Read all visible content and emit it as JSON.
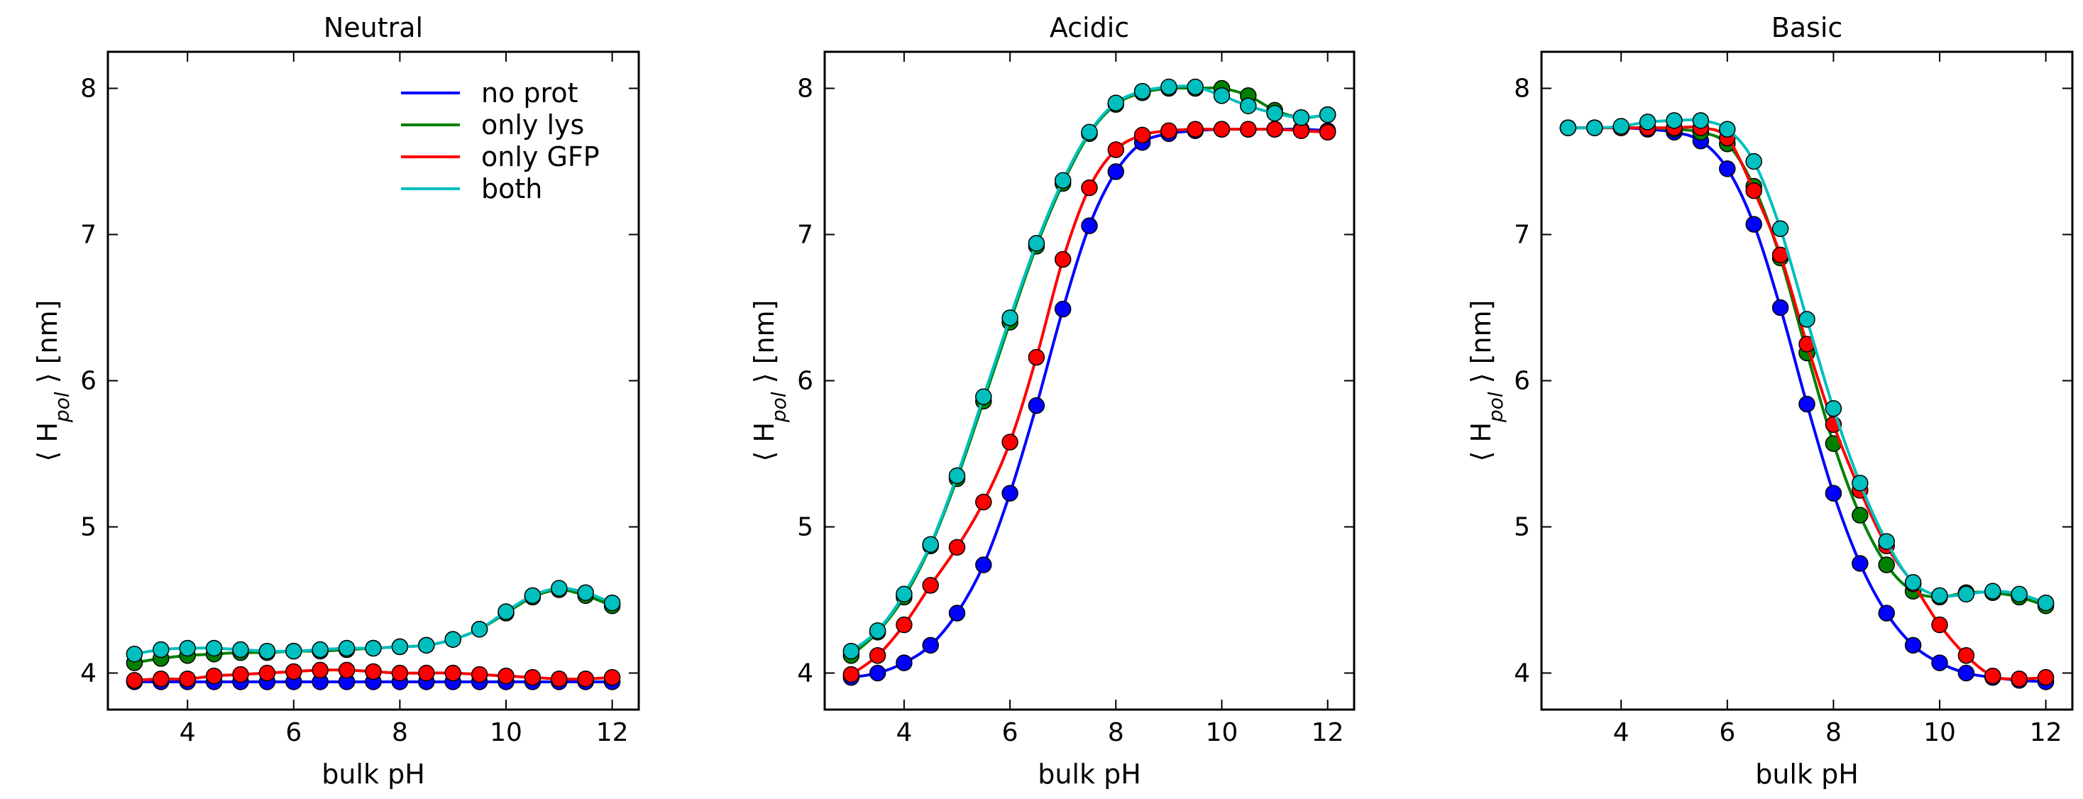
{
  "chart_data": [
    {
      "type": "line",
      "title": "Neutral",
      "xlabel": "bulk pH",
      "ylabel": "⟨ H_pol ⟩ [nm]",
      "xlim": [
        2.5,
        12.5
      ],
      "ylim": [
        3.75,
        8.25
      ],
      "xticks": [
        "4",
        "6",
        "8",
        "10",
        "12"
      ],
      "yticks": [
        "4",
        "5",
        "6",
        "7",
        "8"
      ],
      "x": [
        3,
        3.5,
        4,
        4.5,
        5,
        5.5,
        6,
        6.5,
        7,
        7.5,
        8,
        8.5,
        9,
        9.5,
        10,
        10.5,
        11,
        11.5,
        12
      ],
      "series": [
        {
          "name": "no prot",
          "color": "#0000ff",
          "values": [
            3.94,
            3.94,
            3.94,
            3.94,
            3.94,
            3.94,
            3.94,
            3.94,
            3.94,
            3.94,
            3.94,
            3.94,
            3.94,
            3.94,
            3.94,
            3.94,
            3.94,
            3.94,
            3.94
          ]
        },
        {
          "name": "only lys",
          "color": "#008000",
          "values": [
            4.07,
            4.1,
            4.12,
            4.13,
            4.14,
            4.14,
            4.15,
            4.15,
            4.16,
            4.17,
            4.18,
            4.19,
            4.23,
            4.3,
            4.41,
            4.52,
            4.57,
            4.53,
            4.46
          ]
        },
        {
          "name": "only GFP",
          "color": "#ff0000",
          "values": [
            3.95,
            3.96,
            3.96,
            3.98,
            3.99,
            4.0,
            4.01,
            4.02,
            4.02,
            4.01,
            4.0,
            4.0,
            4.0,
            3.99,
            3.98,
            3.97,
            3.96,
            3.96,
            3.97
          ]
        },
        {
          "name": "both",
          "color": "#00bfbf",
          "values": [
            4.13,
            4.16,
            4.17,
            4.17,
            4.16,
            4.15,
            4.15,
            4.16,
            4.17,
            4.17,
            4.18,
            4.19,
            4.23,
            4.3,
            4.42,
            4.53,
            4.58,
            4.55,
            4.48
          ]
        }
      ],
      "legend": {
        "location": "top-right",
        "entries": [
          "no prot",
          "only lys",
          "only GFP",
          "both"
        ]
      }
    },
    {
      "type": "line",
      "title": "Acidic",
      "xlabel": "bulk pH",
      "ylabel": "⟨ H_pol ⟩ [nm]",
      "xlim": [
        2.5,
        12.5
      ],
      "ylim": [
        3.75,
        8.25
      ],
      "xticks": [
        "4",
        "6",
        "8",
        "10",
        "12"
      ],
      "yticks": [
        "4",
        "5",
        "6",
        "7",
        "8"
      ],
      "x": [
        3,
        3.5,
        4,
        4.5,
        5,
        5.5,
        6,
        6.5,
        7,
        7.5,
        8,
        8.5,
        9,
        9.5,
        10,
        10.5,
        11,
        11.5,
        12
      ],
      "series": [
        {
          "name": "no prot",
          "color": "#0000ff",
          "values": [
            3.97,
            4.0,
            4.07,
            4.19,
            4.41,
            4.74,
            5.23,
            5.83,
            6.49,
            7.06,
            7.43,
            7.63,
            7.69,
            7.71,
            7.72,
            7.72,
            7.72,
            7.72,
            7.71
          ]
        },
        {
          "name": "only lys",
          "color": "#008000",
          "values": [
            4.12,
            4.28,
            4.52,
            4.87,
            5.33,
            5.86,
            6.4,
            6.92,
            7.35,
            7.69,
            7.89,
            7.97,
            8.0,
            8.0,
            8.0,
            7.95,
            7.85,
            7.8,
            7.82
          ]
        },
        {
          "name": "only GFP",
          "color": "#ff0000",
          "values": [
            3.99,
            4.12,
            4.33,
            4.6,
            4.86,
            5.17,
            5.58,
            6.16,
            6.83,
            7.32,
            7.58,
            7.68,
            7.71,
            7.72,
            7.72,
            7.72,
            7.72,
            7.71,
            7.7
          ]
        },
        {
          "name": "both",
          "color": "#00bfbf",
          "values": [
            4.15,
            4.29,
            4.54,
            4.88,
            5.35,
            5.89,
            6.43,
            6.94,
            7.37,
            7.7,
            7.9,
            7.98,
            8.01,
            8.01,
            7.95,
            7.88,
            7.83,
            7.8,
            7.82
          ]
        }
      ]
    },
    {
      "type": "line",
      "title": "Basic",
      "xlabel": "bulk pH",
      "ylabel": "⟨ H_pol ⟩ [nm]",
      "xlim": [
        2.5,
        12.5
      ],
      "ylim": [
        3.75,
        8.25
      ],
      "xticks": [
        "4",
        "6",
        "8",
        "10",
        "12"
      ],
      "yticks": [
        "4",
        "5",
        "6",
        "7",
        "8"
      ],
      "x": [
        3,
        3.5,
        4,
        4.5,
        5,
        5.5,
        6,
        6.5,
        7,
        7.5,
        8,
        8.5,
        9,
        9.5,
        10,
        10.5,
        11,
        11.5,
        12
      ],
      "series": [
        {
          "name": "no prot",
          "color": "#0000ff",
          "values": [
            7.73,
            7.73,
            7.73,
            7.72,
            7.7,
            7.64,
            7.45,
            7.07,
            6.5,
            5.84,
            5.23,
            4.75,
            4.41,
            4.19,
            4.07,
            4.0,
            3.97,
            3.95,
            3.94
          ]
        },
        {
          "name": "only lys",
          "color": "#008000",
          "values": [
            7.73,
            7.73,
            7.73,
            7.73,
            7.72,
            7.7,
            7.62,
            7.33,
            6.84,
            6.19,
            5.57,
            5.08,
            4.74,
            4.56,
            4.52,
            4.55,
            4.55,
            4.52,
            4.46
          ]
        },
        {
          "name": "only GFP",
          "color": "#ff0000",
          "values": [
            7.73,
            7.73,
            7.73,
            7.73,
            7.73,
            7.73,
            7.66,
            7.3,
            6.86,
            6.25,
            5.7,
            5.25,
            4.87,
            4.61,
            4.33,
            4.12,
            3.98,
            3.96,
            3.97
          ]
        },
        {
          "name": "both",
          "color": "#00bfbf",
          "values": [
            7.73,
            7.73,
            7.74,
            7.77,
            7.78,
            7.78,
            7.72,
            7.5,
            7.04,
            6.42,
            5.81,
            5.3,
            4.9,
            4.62,
            4.53,
            4.54,
            4.56,
            4.54,
            4.48
          ]
        }
      ]
    }
  ]
}
